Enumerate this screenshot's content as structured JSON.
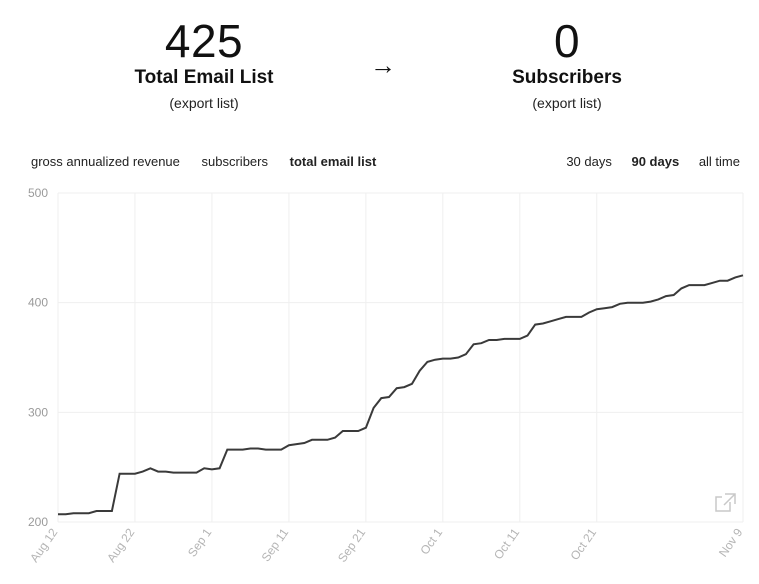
{
  "metrics": {
    "left": {
      "value": "425",
      "label": "Total Email List",
      "export": "(export list)"
    },
    "arrow": "→",
    "right": {
      "value": "0",
      "label": "Subscribers",
      "export": "(export list)"
    }
  },
  "tabs": {
    "metric_tabs": [
      {
        "label": "gross annualized revenue",
        "active": false
      },
      {
        "label": "subscribers",
        "active": false
      },
      {
        "label": "total email list",
        "active": true
      }
    ],
    "range_tabs": [
      {
        "label": "30 days",
        "active": false
      },
      {
        "label": "90 days",
        "active": true
      },
      {
        "label": "all time",
        "active": false
      }
    ]
  },
  "colors": {
    "line": "#3a3a3a",
    "grid": "#efefef",
    "ytick": "#9a9a9a",
    "xtick": "#b5b5b5"
  },
  "icons": {
    "open_external": "external-link-icon"
  },
  "chart_data": {
    "type": "line",
    "title": "",
    "xlabel": "",
    "ylabel": "",
    "ylim": [
      200,
      500
    ],
    "yticks": [
      200,
      300,
      400,
      500
    ],
    "xticks": [
      "Aug 12",
      "Aug 22",
      "Sep 1",
      "Sep 11",
      "Sep 21",
      "Oct 1",
      "Oct 11",
      "Oct 21",
      "Nov 9"
    ],
    "x": [
      "Aug 12",
      "Aug 13",
      "Aug 14",
      "Aug 15",
      "Aug 16",
      "Aug 17",
      "Aug 18",
      "Aug 19",
      "Aug 20",
      "Aug 21",
      "Aug 22",
      "Aug 23",
      "Aug 24",
      "Aug 25",
      "Aug 26",
      "Aug 27",
      "Aug 28",
      "Aug 29",
      "Aug 30",
      "Aug 31",
      "Sep 1",
      "Sep 2",
      "Sep 3",
      "Sep 4",
      "Sep 5",
      "Sep 6",
      "Sep 7",
      "Sep 8",
      "Sep 9",
      "Sep 10",
      "Sep 11",
      "Sep 12",
      "Sep 13",
      "Sep 14",
      "Sep 15",
      "Sep 16",
      "Sep 17",
      "Sep 18",
      "Sep 19",
      "Sep 20",
      "Sep 21",
      "Sep 22",
      "Sep 23",
      "Sep 24",
      "Sep 25",
      "Sep 26",
      "Sep 27",
      "Sep 28",
      "Sep 29",
      "Sep 30",
      "Oct 1",
      "Oct 2",
      "Oct 3",
      "Oct 4",
      "Oct 5",
      "Oct 6",
      "Oct 7",
      "Oct 8",
      "Oct 9",
      "Oct 10",
      "Oct 11",
      "Oct 12",
      "Oct 13",
      "Oct 14",
      "Oct 15",
      "Oct 16",
      "Oct 17",
      "Oct 18",
      "Oct 19",
      "Oct 20",
      "Oct 21",
      "Oct 22",
      "Oct 23",
      "Oct 24",
      "Oct 25",
      "Oct 26",
      "Oct 27",
      "Oct 28",
      "Oct 29",
      "Oct 30",
      "Oct 31",
      "Nov 1",
      "Nov 2",
      "Nov 3",
      "Nov 4",
      "Nov 5",
      "Nov 6",
      "Nov 7",
      "Nov 8",
      "Nov 9"
    ],
    "series": [
      {
        "values": [
          207,
          207,
          208,
          208,
          208,
          210,
          210,
          210,
          244,
          244,
          244,
          246,
          249,
          246,
          246,
          245,
          245,
          245,
          245,
          249,
          248,
          249,
          266,
          266,
          266,
          267,
          267,
          266,
          266,
          266,
          270,
          271,
          272,
          275,
          275,
          275,
          277,
          283,
          283,
          283,
          286,
          304,
          313,
          314,
          322,
          323,
          326,
          338,
          346,
          348,
          349,
          349,
          350,
          353,
          362,
          363,
          366,
          366,
          367,
          367,
          367,
          370,
          380,
          381,
          383,
          385,
          387,
          387,
          387,
          391,
          394,
          395,
          396,
          399,
          400,
          400,
          400,
          401,
          403,
          406,
          407,
          413,
          416,
          416,
          416,
          418,
          420,
          420,
          423,
          425
        ]
      }
    ]
  }
}
